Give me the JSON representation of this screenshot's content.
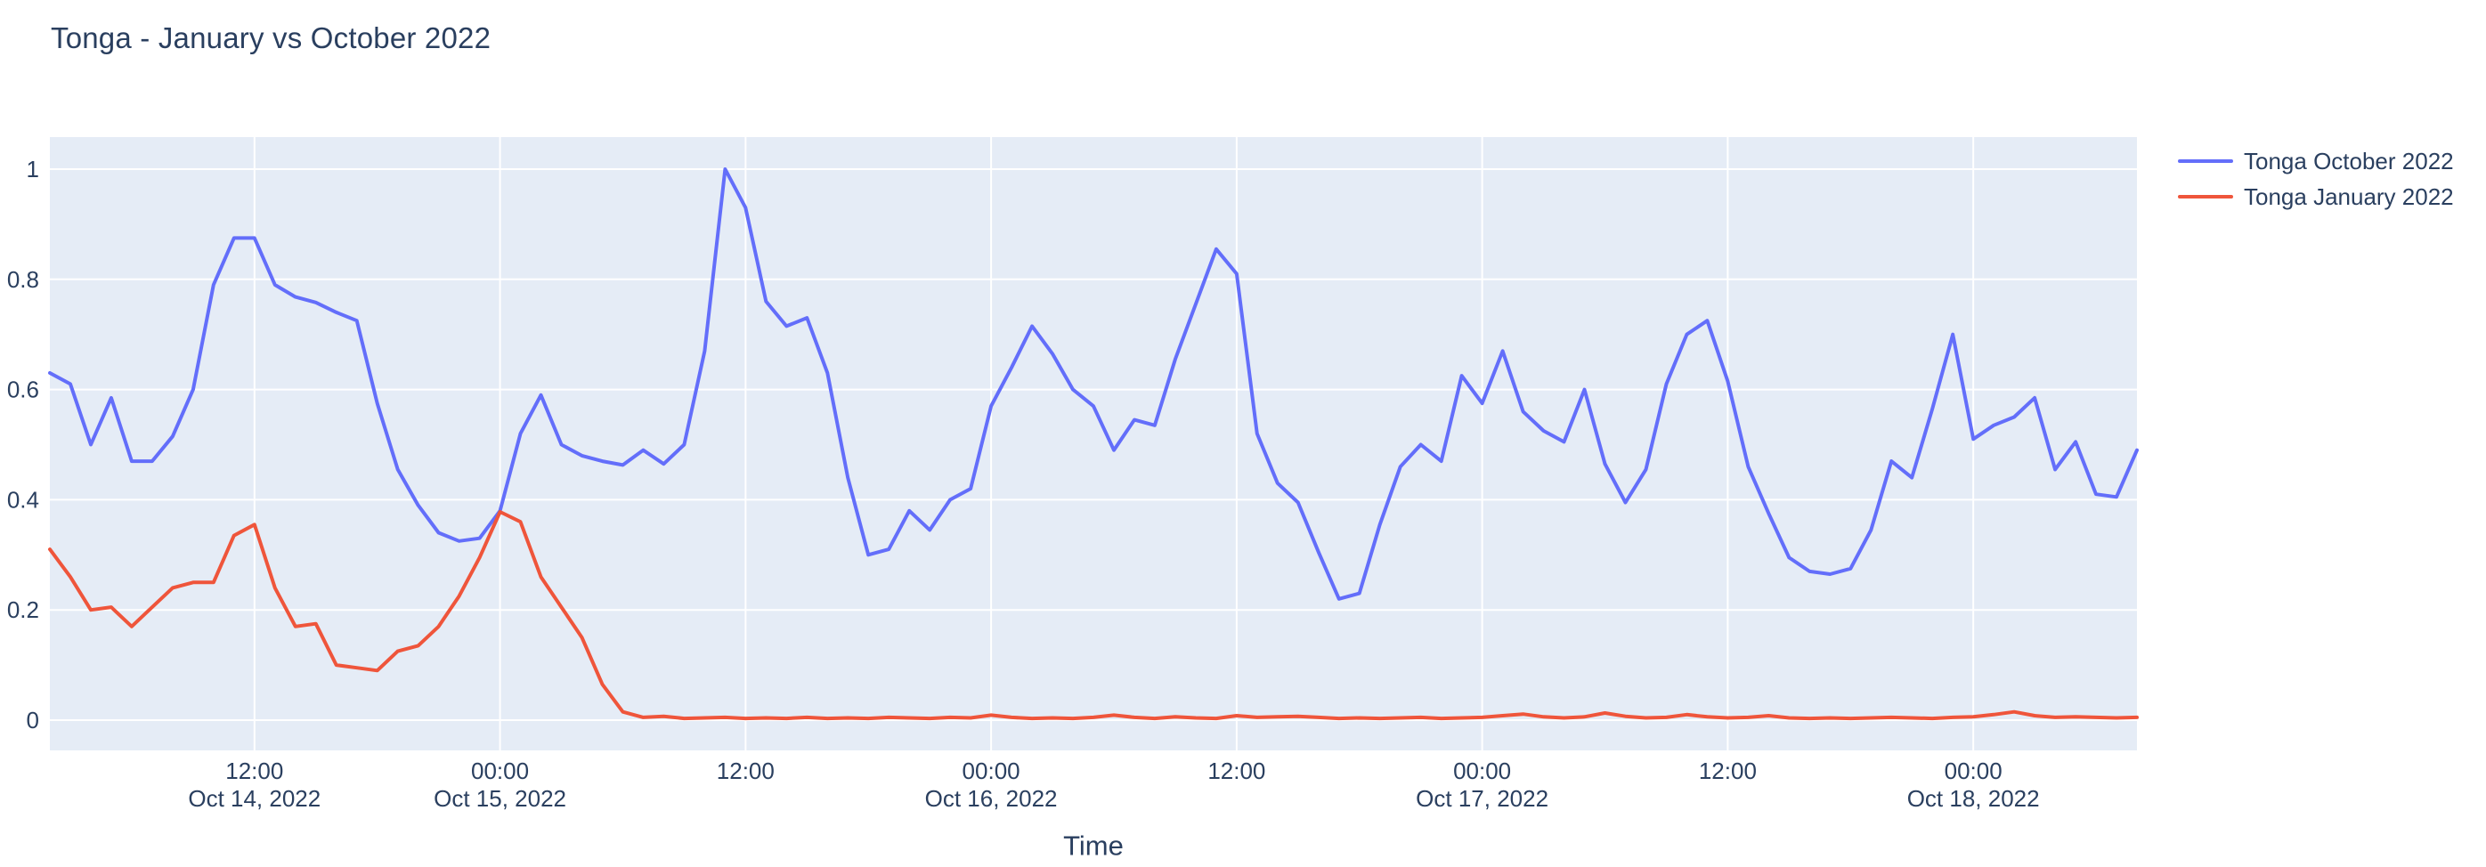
{
  "title": "Tonga - January vs October 2022",
  "colors": {
    "paper_bg": "#ffffff",
    "plot_bg": "#e5ecf6",
    "grid": "#ffffff",
    "font": "#2a3f5f",
    "october": "#636efa",
    "january": "#ef553b"
  },
  "legend": {
    "items": [
      {
        "label": "Tonga October 2022",
        "color_key": "october"
      },
      {
        "label": "Tonga January 2022",
        "color_key": "january"
      }
    ]
  },
  "chart_data": {
    "type": "line",
    "title": "Tonga - January vs October 2022",
    "xlabel": "Time",
    "ylabel": "",
    "grid": true,
    "legend_position": "right",
    "x_start": "2022-10-14 02:00",
    "x_step_hours": 1,
    "x_hours_range": [
      2,
      104
    ],
    "ylim": [
      -0.055,
      1.058
    ],
    "y_ticks": [
      0,
      0.2,
      0.4,
      0.6,
      0.8,
      1
    ],
    "y_tick_labels": [
      "0",
      "0.2",
      "0.4",
      "0.6",
      "0.8",
      "1"
    ],
    "x_ticks": [
      {
        "hour": 12,
        "time": "12:00",
        "date": "Oct 14, 2022"
      },
      {
        "hour": 24,
        "time": "00:00",
        "date": "Oct 15, 2022"
      },
      {
        "hour": 36,
        "time": "12:00",
        "date": ""
      },
      {
        "hour": 48,
        "time": "00:00",
        "date": "Oct 16, 2022"
      },
      {
        "hour": 60,
        "time": "12:00",
        "date": ""
      },
      {
        "hour": 72,
        "time": "00:00",
        "date": "Oct 17, 2022"
      },
      {
        "hour": 84,
        "time": "12:00",
        "date": ""
      },
      {
        "hour": 96,
        "time": "00:00",
        "date": "Oct 18, 2022"
      }
    ],
    "series": [
      {
        "name": "Tonga October 2022",
        "color": "#636efa",
        "values": [
          0.63,
          0.61,
          0.5,
          0.585,
          0.47,
          0.47,
          0.515,
          0.6,
          0.79,
          0.875,
          0.875,
          0.79,
          0.768,
          0.758,
          0.74,
          0.725,
          0.575,
          0.455,
          0.39,
          0.34,
          0.325,
          0.33,
          0.38,
          0.52,
          0.59,
          0.5,
          0.48,
          0.47,
          0.463,
          0.49,
          0.465,
          0.5,
          0.67,
          1.0,
          0.93,
          0.76,
          0.715,
          0.73,
          0.63,
          0.44,
          0.3,
          0.31,
          0.38,
          0.345,
          0.4,
          0.42,
          0.57,
          0.64,
          0.715,
          0.665,
          0.6,
          0.57,
          0.49,
          0.545,
          0.535,
          0.655,
          0.755,
          0.855,
          0.81,
          0.52,
          0.43,
          0.395,
          0.305,
          0.22,
          0.23,
          0.355,
          0.46,
          0.5,
          0.47,
          0.625,
          0.575,
          0.67,
          0.56,
          0.525,
          0.505,
          0.6,
          0.465,
          0.395,
          0.455,
          0.61,
          0.7,
          0.725,
          0.615,
          0.46,
          0.375,
          0.295,
          0.27,
          0.265,
          0.275,
          0.345,
          0.47,
          0.44,
          0.565,
          0.7,
          0.51,
          0.535,
          0.55,
          0.585,
          0.455,
          0.505,
          0.41,
          0.405,
          0.49
        ]
      },
      {
        "name": "Tonga January 2022",
        "color": "#ef553b",
        "values": [
          0.31,
          0.26,
          0.2,
          0.205,
          0.17,
          0.205,
          0.24,
          0.25,
          0.25,
          0.335,
          0.355,
          0.24,
          0.17,
          0.175,
          0.1,
          0.095,
          0.09,
          0.125,
          0.135,
          0.17,
          0.225,
          0.295,
          0.378,
          0.36,
          0.26,
          0.205,
          0.15,
          0.065,
          0.015,
          0.005,
          0.007,
          0.003,
          0.004,
          0.005,
          0.003,
          0.004,
          0.003,
          0.005,
          0.003,
          0.004,
          0.003,
          0.005,
          0.004,
          0.003,
          0.005,
          0.004,
          0.009,
          0.005,
          0.003,
          0.004,
          0.003,
          0.005,
          0.009,
          0.005,
          0.003,
          0.006,
          0.004,
          0.003,
          0.008,
          0.005,
          0.006,
          0.007,
          0.005,
          0.003,
          0.004,
          0.003,
          0.004,
          0.005,
          0.003,
          0.004,
          0.005,
          0.008,
          0.011,
          0.006,
          0.004,
          0.006,
          0.013,
          0.007,
          0.004,
          0.005,
          0.01,
          0.006,
          0.004,
          0.005,
          0.008,
          0.004,
          0.003,
          0.004,
          0.003,
          0.004,
          0.005,
          0.004,
          0.003,
          0.005,
          0.006,
          0.01,
          0.015,
          0.008,
          0.005,
          0.006,
          0.005,
          0.004,
          0.005
        ]
      }
    ]
  }
}
